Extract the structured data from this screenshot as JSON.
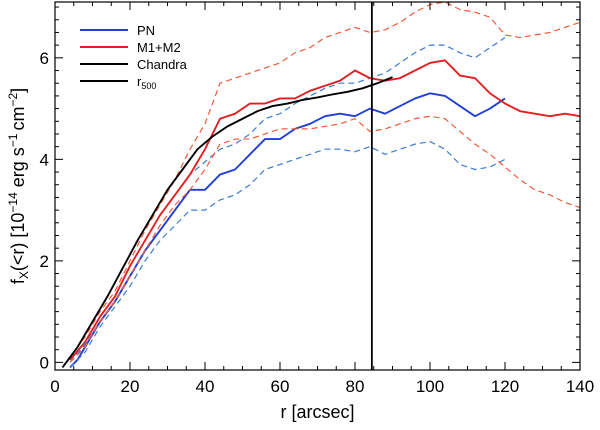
{
  "chart_data": {
    "type": "line",
    "xlabel": "r [arcsec]",
    "ylabel_parts": {
      "prefix": "f",
      "subscript": "X",
      "middle": "(<r) [10",
      "exponent1": "−14",
      "units": " erg s",
      "exponent2": "−1",
      "cm": "cm",
      "exponent3": "−2",
      "suffix": "]"
    },
    "xlim": [
      0,
      140
    ],
    "ylim": [
      -0.15,
      7.1
    ],
    "xticks": [
      0,
      20,
      40,
      60,
      80,
      100,
      120,
      140
    ],
    "yticks": [
      0,
      2,
      4,
      6
    ],
    "x_tick_labels": [
      "0",
      "20",
      "40",
      "60",
      "80",
      "100",
      "120",
      "140"
    ],
    "y_tick_labels": [
      "0",
      "2",
      "4",
      "6"
    ],
    "legend": [
      {
        "label": "PN",
        "color": "#1f3fd6"
      },
      {
        "label": "M1+M2",
        "color": "#e02020"
      },
      {
        "label": "Chandra",
        "color": "#000000"
      },
      {
        "label": "r",
        "subscript": "500",
        "color": "#000000"
      }
    ],
    "legend_position": "top-left",
    "r500": 84.5,
    "series": [
      {
        "name": "PN",
        "color": "#1f3fd6",
        "style": "solid",
        "x": [
          4,
          6,
          8,
          12,
          16,
          20,
          24,
          28,
          32,
          36,
          40,
          44,
          48,
          52,
          56,
          60,
          64,
          68,
          72,
          76,
          80,
          84,
          88,
          92,
          96,
          100,
          104,
          108,
          112,
          116,
          120
        ],
        "y": [
          -0.1,
          0.05,
          0.3,
          0.8,
          1.2,
          1.7,
          2.2,
          2.6,
          3.0,
          3.4,
          3.4,
          3.7,
          3.8,
          4.1,
          4.4,
          4.4,
          4.6,
          4.7,
          4.85,
          4.9,
          4.85,
          5.0,
          4.9,
          5.05,
          5.2,
          5.3,
          5.25,
          5.05,
          4.85,
          5.0,
          5.2
        ]
      },
      {
        "name": "PN upper",
        "color": "#3a7bd5",
        "style": "dashed",
        "x": [
          4,
          8,
          12,
          16,
          20,
          24,
          28,
          32,
          36,
          40,
          44,
          48,
          52,
          56,
          60,
          64,
          68,
          72,
          76,
          80,
          84,
          88,
          92,
          96,
          100,
          104,
          108,
          112,
          116,
          120
        ],
        "y": [
          0.0,
          0.35,
          0.9,
          1.3,
          1.9,
          2.4,
          2.9,
          3.3,
          3.7,
          3.95,
          4.2,
          4.3,
          4.5,
          4.8,
          4.9,
          5.1,
          5.25,
          5.4,
          5.5,
          5.5,
          5.6,
          5.7,
          5.9,
          6.1,
          6.25,
          6.25,
          6.1,
          6.0,
          6.2,
          6.4
        ]
      },
      {
        "name": "PN lower",
        "color": "#3a7bd5",
        "style": "dashed",
        "x": [
          4,
          8,
          12,
          16,
          20,
          24,
          28,
          32,
          36,
          40,
          44,
          48,
          52,
          56,
          60,
          64,
          68,
          72,
          76,
          80,
          84,
          88,
          92,
          96,
          100,
          104,
          108,
          112,
          116,
          120
        ],
        "y": [
          -0.1,
          0.2,
          0.7,
          1.1,
          1.5,
          2.0,
          2.4,
          2.7,
          3.0,
          3.0,
          3.2,
          3.3,
          3.5,
          3.8,
          3.9,
          4.0,
          4.1,
          4.2,
          4.2,
          4.15,
          4.25,
          4.1,
          4.2,
          4.3,
          4.35,
          4.2,
          3.9,
          3.8,
          3.85,
          4.0
        ]
      },
      {
        "name": "M1+M2",
        "color": "#e02020",
        "style": "solid",
        "x": [
          4,
          8,
          12,
          16,
          20,
          24,
          28,
          32,
          36,
          40,
          44,
          48,
          52,
          56,
          60,
          64,
          68,
          72,
          76,
          80,
          84,
          88,
          92,
          96,
          100,
          104,
          108,
          112,
          116,
          120,
          124,
          128,
          132,
          136,
          140
        ],
        "y": [
          0.05,
          0.4,
          0.9,
          1.3,
          1.9,
          2.4,
          2.9,
          3.3,
          3.7,
          4.2,
          4.8,
          4.9,
          5.1,
          5.1,
          5.2,
          5.2,
          5.35,
          5.45,
          5.55,
          5.75,
          5.6,
          5.55,
          5.6,
          5.75,
          5.9,
          5.95,
          5.65,
          5.6,
          5.3,
          5.1,
          4.95,
          4.9,
          4.85,
          4.9,
          4.85
        ]
      },
      {
        "name": "M1+M2 upper",
        "color": "#f05a3a",
        "style": "dashed",
        "x": [
          4,
          8,
          12,
          16,
          20,
          24,
          28,
          32,
          36,
          40,
          44,
          48,
          52,
          56,
          60,
          64,
          68,
          72,
          76,
          80,
          84,
          88,
          92,
          96,
          100,
          104,
          108,
          112,
          116,
          120,
          124,
          128,
          132,
          136,
          140
        ],
        "y": [
          0.1,
          0.5,
          1.0,
          1.4,
          2.0,
          2.6,
          3.1,
          3.6,
          4.2,
          4.7,
          5.5,
          5.6,
          5.7,
          5.8,
          5.9,
          6.1,
          6.2,
          6.4,
          6.5,
          6.6,
          6.5,
          6.55,
          6.7,
          6.9,
          7.05,
          7.1,
          6.95,
          6.9,
          6.8,
          6.45,
          6.4,
          6.45,
          6.5,
          6.6,
          6.7
        ]
      },
      {
        "name": "M1+M2 lower",
        "color": "#f05a3a",
        "style": "dashed",
        "x": [
          4,
          8,
          12,
          16,
          20,
          24,
          28,
          32,
          36,
          40,
          44,
          48,
          52,
          56,
          60,
          64,
          68,
          72,
          76,
          80,
          84,
          88,
          92,
          96,
          100,
          104,
          108,
          112,
          116,
          120,
          124,
          128,
          132,
          136,
          140
        ],
        "y": [
          0.0,
          0.3,
          0.8,
          1.2,
          1.7,
          2.2,
          2.7,
          3.1,
          3.4,
          3.8,
          4.3,
          4.4,
          4.4,
          4.5,
          4.6,
          4.6,
          4.6,
          4.65,
          4.7,
          4.8,
          4.55,
          4.6,
          4.7,
          4.8,
          4.85,
          4.8,
          4.55,
          4.3,
          4.1,
          3.85,
          3.6,
          3.4,
          3.3,
          3.15,
          3.05
        ]
      },
      {
        "name": "Chandra",
        "color": "#000000",
        "style": "solid",
        "x": [
          2,
          6,
          10,
          14,
          18,
          22,
          26,
          30,
          34,
          38,
          42,
          46,
          50,
          54,
          58,
          62,
          66,
          70,
          74,
          78,
          82,
          86,
          90
        ],
        "y": [
          -0.1,
          0.3,
          0.8,
          1.3,
          1.85,
          2.4,
          2.9,
          3.4,
          3.8,
          4.2,
          4.45,
          4.65,
          4.8,
          4.95,
          5.05,
          5.1,
          5.17,
          5.22,
          5.28,
          5.33,
          5.4,
          5.5,
          5.62
        ]
      }
    ]
  }
}
